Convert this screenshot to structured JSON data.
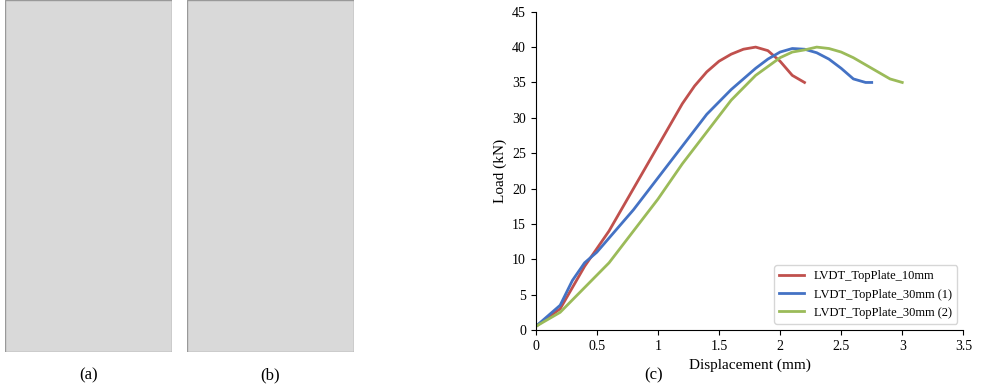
{
  "chart_data": {
    "type": "line",
    "x_label": "Displacement (mm)",
    "y_label": "Load (kN)",
    "xlim": [
      0,
      3.5
    ],
    "xticks": [
      0,
      0.5,
      1,
      1.5,
      2,
      2.5,
      3,
      3.5
    ],
    "ylim": [
      0,
      45
    ],
    "yticks": [
      0,
      5,
      10,
      15,
      20,
      25,
      30,
      35,
      40,
      45
    ],
    "grid": false,
    "legend": "lower right",
    "series": [
      {
        "name": "LVDT_TopPlate_10mm",
        "color": "#c0504d",
        "x": [
          0,
          0.2,
          0.3,
          0.4,
          0.5,
          0.6,
          0.7,
          0.8,
          0.9,
          1.0,
          1.1,
          1.2,
          1.3,
          1.4,
          1.5,
          1.6,
          1.7,
          1.8,
          1.9,
          2.0,
          2.1,
          2.2
        ],
        "values": [
          0.5,
          3,
          6,
          9,
          11.5,
          14,
          17,
          20,
          23,
          26,
          29,
          32,
          34.5,
          36.5,
          38,
          39,
          39.7,
          40,
          39.5,
          38,
          36,
          35
        ]
      },
      {
        "name": "LVDT_TopPlate_30mm (1)",
        "color": "#4472c4",
        "x": [
          0,
          0.2,
          0.3,
          0.4,
          0.5,
          0.6,
          0.8,
          1.0,
          1.2,
          1.4,
          1.6,
          1.8,
          1.9,
          2.0,
          2.1,
          2.2,
          2.3,
          2.4,
          2.5,
          2.6,
          2.7,
          2.75
        ],
        "values": [
          0.5,
          3.5,
          7,
          9.5,
          11,
          13,
          17,
          21.5,
          26,
          30.5,
          34,
          37,
          38.3,
          39.3,
          39.8,
          39.7,
          39.2,
          38.3,
          37,
          35.5,
          35,
          35
        ]
      },
      {
        "name": "LVDT_TopPlate_30mm (2)",
        "color": "#9bbb59",
        "x": [
          0,
          0.2,
          0.4,
          0.6,
          0.8,
          1.0,
          1.2,
          1.4,
          1.6,
          1.8,
          2.0,
          2.1,
          2.2,
          2.3,
          2.4,
          2.5,
          2.6,
          2.7,
          2.8,
          2.9,
          3.0
        ],
        "values": [
          0.5,
          2.5,
          6,
          9.5,
          14,
          18.5,
          23.5,
          28,
          32.5,
          36,
          38.5,
          39.3,
          39.6,
          40,
          39.8,
          39.3,
          38.5,
          37.5,
          36.5,
          35.5,
          35
        ]
      }
    ]
  },
  "captions": [
    "(a)",
    "(b)",
    "(c)"
  ]
}
